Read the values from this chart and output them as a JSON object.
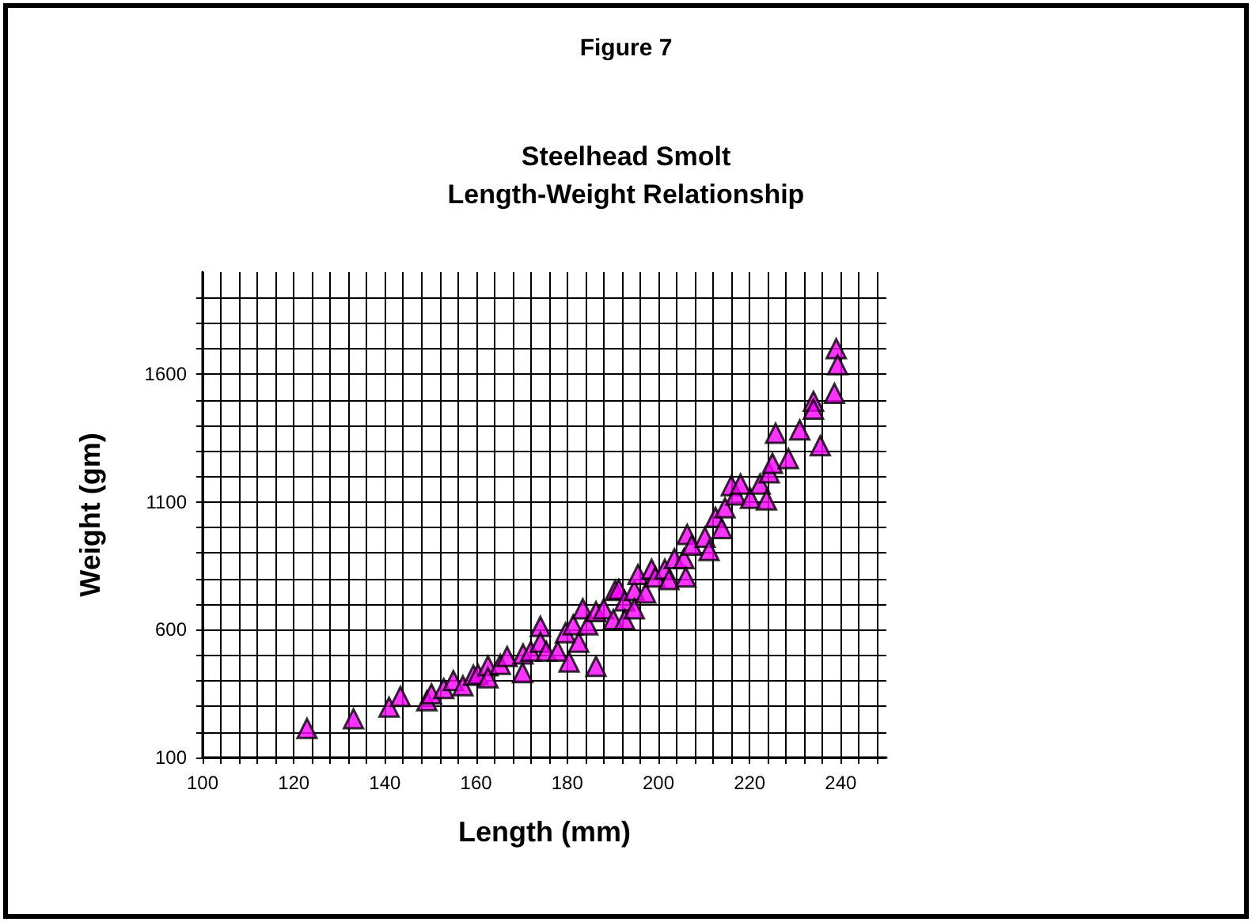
{
  "chart_data": {
    "type": "scatter",
    "title": "Figure 7",
    "subtitle": "Steelhead Smolt\nLength-Weight Relationship",
    "xlabel": "Length (mm)",
    "ylabel": "Weight (gm)",
    "x": [
      122.9,
      133.1,
      140.9,
      143.4,
      149.2,
      150.2,
      152.9,
      155.0,
      157.1,
      159.4,
      160.4,
      162.6,
      162.6,
      165.3,
      166.8,
      170.3,
      170.2,
      172.0,
      174.1,
      174.1,
      175.4,
      177.9,
      179.6,
      180.4,
      181.3,
      182.5,
      183.4,
      184.5,
      186.3,
      186.3,
      188.0,
      190.1,
      190.5,
      191.3,
      192.6,
      192.6,
      194.7,
      194.7,
      195.5,
      197.2,
      198.5,
      199.3,
      201.4,
      202.3,
      203.5,
      205.6,
      206.0,
      206.3,
      207.3,
      210.2,
      211.1,
      212.5,
      213.9,
      214.6,
      216.0,
      217.0,
      218.0,
      220.2,
      222.3,
      223.7,
      224.3,
      225.0,
      225.7,
      228.5,
      231.0,
      234.0,
      234.0,
      235.5,
      238.6,
      239.0,
      239.3
    ],
    "values": [
      214,
      252,
      297,
      339,
      322,
      349,
      370,
      401,
      381,
      422,
      426,
      459,
      412,
      464,
      495,
      505,
      432,
      516,
      613,
      551,
      516,
      516,
      588,
      474,
      619,
      551,
      682,
      619,
      671,
      457,
      682,
      640,
      754,
      758,
      713,
      640,
      754,
      682,
      816,
      744,
      837,
      806,
      837,
      796,
      878,
      878,
      806,
      973,
      931,
      962,
      910,
      1040,
      996,
      1077,
      1164,
      1127,
      1170,
      1114,
      1170,
      1108,
      1214,
      1251,
      1369,
      1270,
      1382,
      1494,
      1463,
      1320,
      1525,
      1700,
      1637
    ],
    "color": "#ff00ff",
    "marker": "triangle",
    "grid": true,
    "xlim": [
      100,
      250
    ],
    "xticks": [
      100,
      {
        "value": 104,
        "label": null
      },
      {
        "value": 108,
        "label": null
      },
      {
        "value": 112,
        "label": null
      },
      {
        "value": 116,
        "label": null
      },
      120,
      {
        "value": 124,
        "label": null
      },
      {
        "value": 128,
        "label": null
      },
      {
        "value": 132,
        "label": null
      },
      {
        "value": 136,
        "label": null
      },
      140,
      {
        "value": 144,
        "label": null
      },
      {
        "value": 148,
        "label": null
      },
      {
        "value": 152,
        "label": null
      },
      {
        "value": 156,
        "label": null
      },
      160,
      {
        "value": 164,
        "label": null
      },
      {
        "value": 168,
        "label": null
      },
      {
        "value": 172,
        "label": null
      },
      {
        "value": 176,
        "label": null
      },
      180,
      {
        "value": 184,
        "label": null
      },
      {
        "value": 188,
        "label": null
      },
      {
        "value": 192,
        "label": null
      },
      {
        "value": 196,
        "label": null
      },
      200,
      {
        "value": 204,
        "label": null
      },
      {
        "value": 208,
        "label": null
      },
      {
        "value": 212,
        "label": null
      },
      {
        "value": 216,
        "label": null
      },
      220,
      {
        "value": 224,
        "label": null
      },
      {
        "value": 228,
        "label": null
      },
      {
        "value": 232,
        "label": null
      },
      {
        "value": 236,
        "label": null
      },
      240,
      {
        "value": 244,
        "label": null
      },
      {
        "value": 248,
        "label": null
      }
    ],
    "ylim": [
      100,
      2000
    ],
    "yticks": [
      100,
      {
        "value": 200,
        "label": null
      },
      {
        "value": 300,
        "label": null
      },
      {
        "value": 400,
        "label": null
      },
      {
        "value": 500,
        "label": null
      },
      600,
      {
        "value": 700,
        "label": null
      },
      {
        "value": 800,
        "label": null
      },
      {
        "value": 900,
        "label": null
      },
      {
        "value": 1000,
        "label": null
      },
      1100,
      {
        "value": 1200,
        "label": null
      },
      {
        "value": 1300,
        "label": null
      },
      {
        "value": 1400,
        "label": null
      },
      {
        "value": 1500,
        "label": null
      },
      1600,
      {
        "value": 1700,
        "label": null
      },
      {
        "value": 1800,
        "label": null
      },
      {
        "value": 1900,
        "label": null
      }
    ]
  }
}
